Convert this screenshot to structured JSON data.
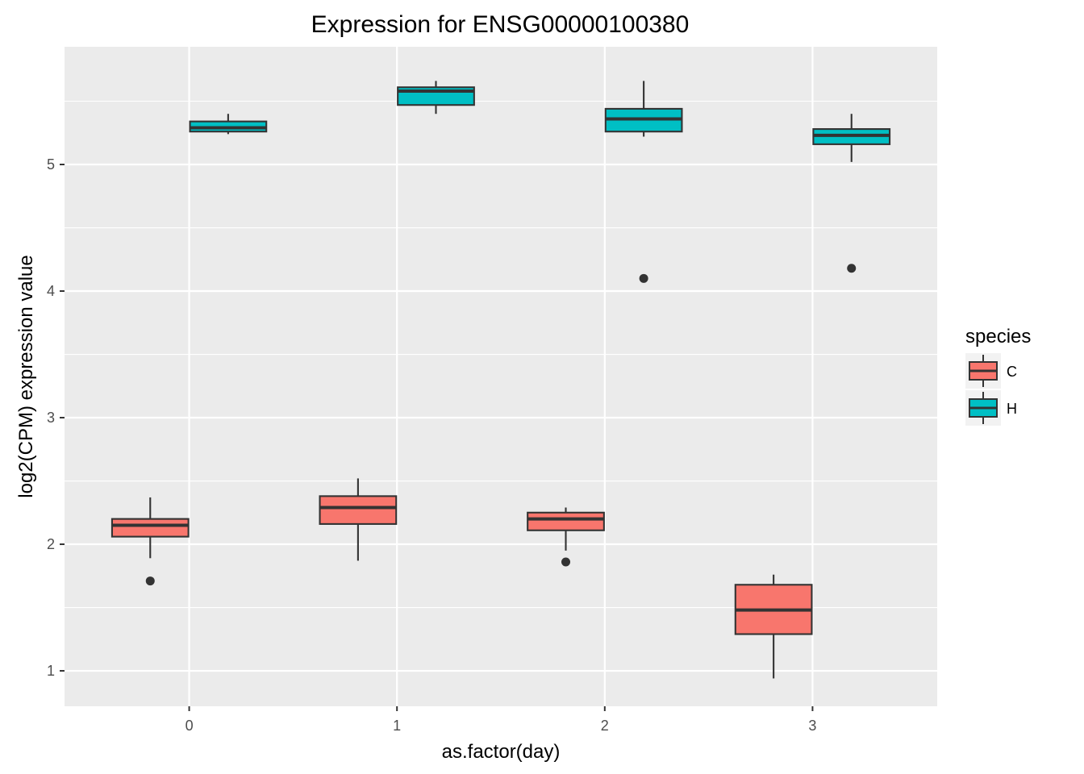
{
  "chart_data": {
    "type": "boxplot",
    "title": "Expression for ENSG00000100380",
    "xlabel": "as.factor(day)",
    "ylabel": "log2(CPM) expression value",
    "categories": [
      "0",
      "1",
      "2",
      "3"
    ],
    "ylim": [
      0.72,
      5.93
    ],
    "yticks": [
      1,
      2,
      3,
      4,
      5
    ],
    "ytick_labels": [
      "1",
      "2",
      "3",
      "4",
      "5"
    ],
    "grid": true,
    "legend": {
      "title": "species",
      "position": "right",
      "entries": [
        {
          "label": "C",
          "color": "#F8766D"
        },
        {
          "label": "H",
          "color": "#00BFC4"
        }
      ]
    },
    "series": [
      {
        "name": "C",
        "color": "#F8766D",
        "boxes": [
          {
            "category": "0",
            "whisker_low": 1.89,
            "q1": 2.06,
            "median": 2.15,
            "q3": 2.2,
            "whisker_high": 2.37,
            "outliers": [
              1.71
            ]
          },
          {
            "category": "1",
            "whisker_low": 1.87,
            "q1": 2.16,
            "median": 2.29,
            "q3": 2.38,
            "whisker_high": 2.52,
            "outliers": []
          },
          {
            "category": "2",
            "whisker_low": 1.95,
            "q1": 2.11,
            "median": 2.2,
            "q3": 2.25,
            "whisker_high": 2.29,
            "outliers": [
              1.86
            ]
          },
          {
            "category": "3",
            "whisker_low": 0.94,
            "q1": 1.29,
            "median": 1.48,
            "q3": 1.68,
            "whisker_high": 1.76,
            "outliers": []
          }
        ]
      },
      {
        "name": "H",
        "color": "#00BFC4",
        "boxes": [
          {
            "category": "0",
            "whisker_low": 5.24,
            "q1": 5.26,
            "median": 5.29,
            "q3": 5.34,
            "whisker_high": 5.4,
            "outliers": []
          },
          {
            "category": "1",
            "whisker_low": 5.4,
            "q1": 5.47,
            "median": 5.58,
            "q3": 5.61,
            "whisker_high": 5.66,
            "outliers": []
          },
          {
            "category": "2",
            "whisker_low": 5.22,
            "q1": 5.26,
            "median": 5.36,
            "q3": 5.44,
            "whisker_high": 5.66,
            "outliers": [
              4.1
            ]
          },
          {
            "category": "3",
            "whisker_low": 5.02,
            "q1": 5.16,
            "median": 5.23,
            "q3": 5.28,
            "whisker_high": 5.4,
            "outliers": [
              4.18
            ]
          }
        ]
      }
    ]
  }
}
